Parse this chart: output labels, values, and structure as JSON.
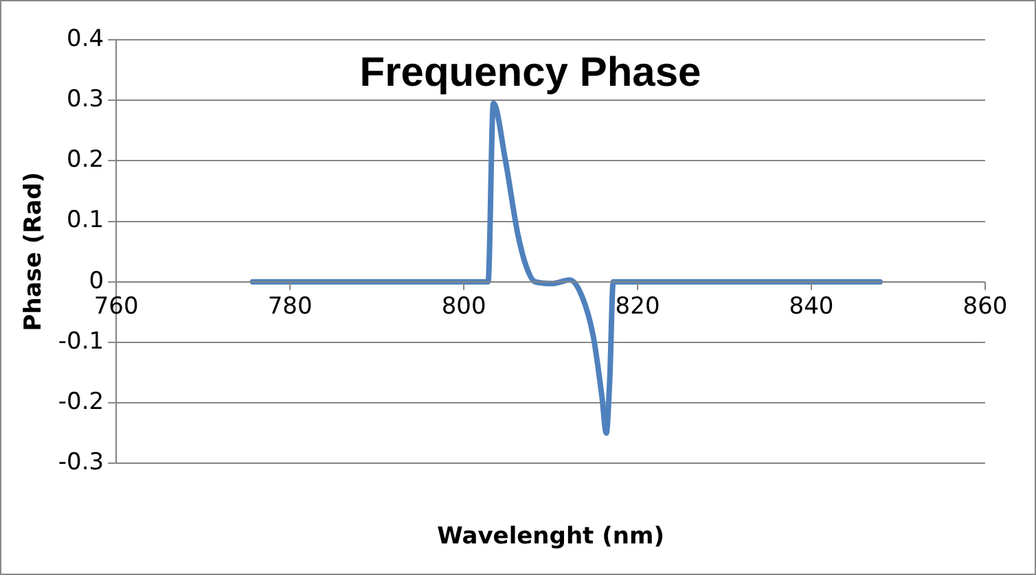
{
  "chart_data": {
    "type": "line",
    "title": "Frequency Phase",
    "xlabel": "Wavelenght (nm)",
    "ylabel": "Phase (Rad)",
    "x": [
      775.7,
      790,
      802.8,
      803.4,
      804.8,
      806.2,
      807.2,
      808.2,
      810.2,
      812.2,
      813.6,
      814.9,
      815.9,
      816.4,
      816.8,
      817.2,
      830,
      847.9
    ],
    "series": [
      {
        "color": "#4f81bd",
        "values": [
          0,
          0,
          0,
          0.295,
          0.2,
          0.08,
          0.025,
          0,
          -0.003,
          0.003,
          -0.024,
          -0.09,
          -0.19,
          -0.25,
          -0.16,
          0,
          0,
          0
        ]
      }
    ],
    "xlim": [
      760,
      860
    ],
    "xticks": [
      760,
      780,
      800,
      820,
      840,
      860
    ],
    "ylim": [
      -0.3,
      0.4
    ],
    "yticks": [
      -0.3,
      -0.2,
      -0.1,
      0,
      0.1,
      0.2,
      0.3,
      0.4
    ],
    "grid": "y",
    "legend": false,
    "marker": "none",
    "line_style": "solid"
  }
}
